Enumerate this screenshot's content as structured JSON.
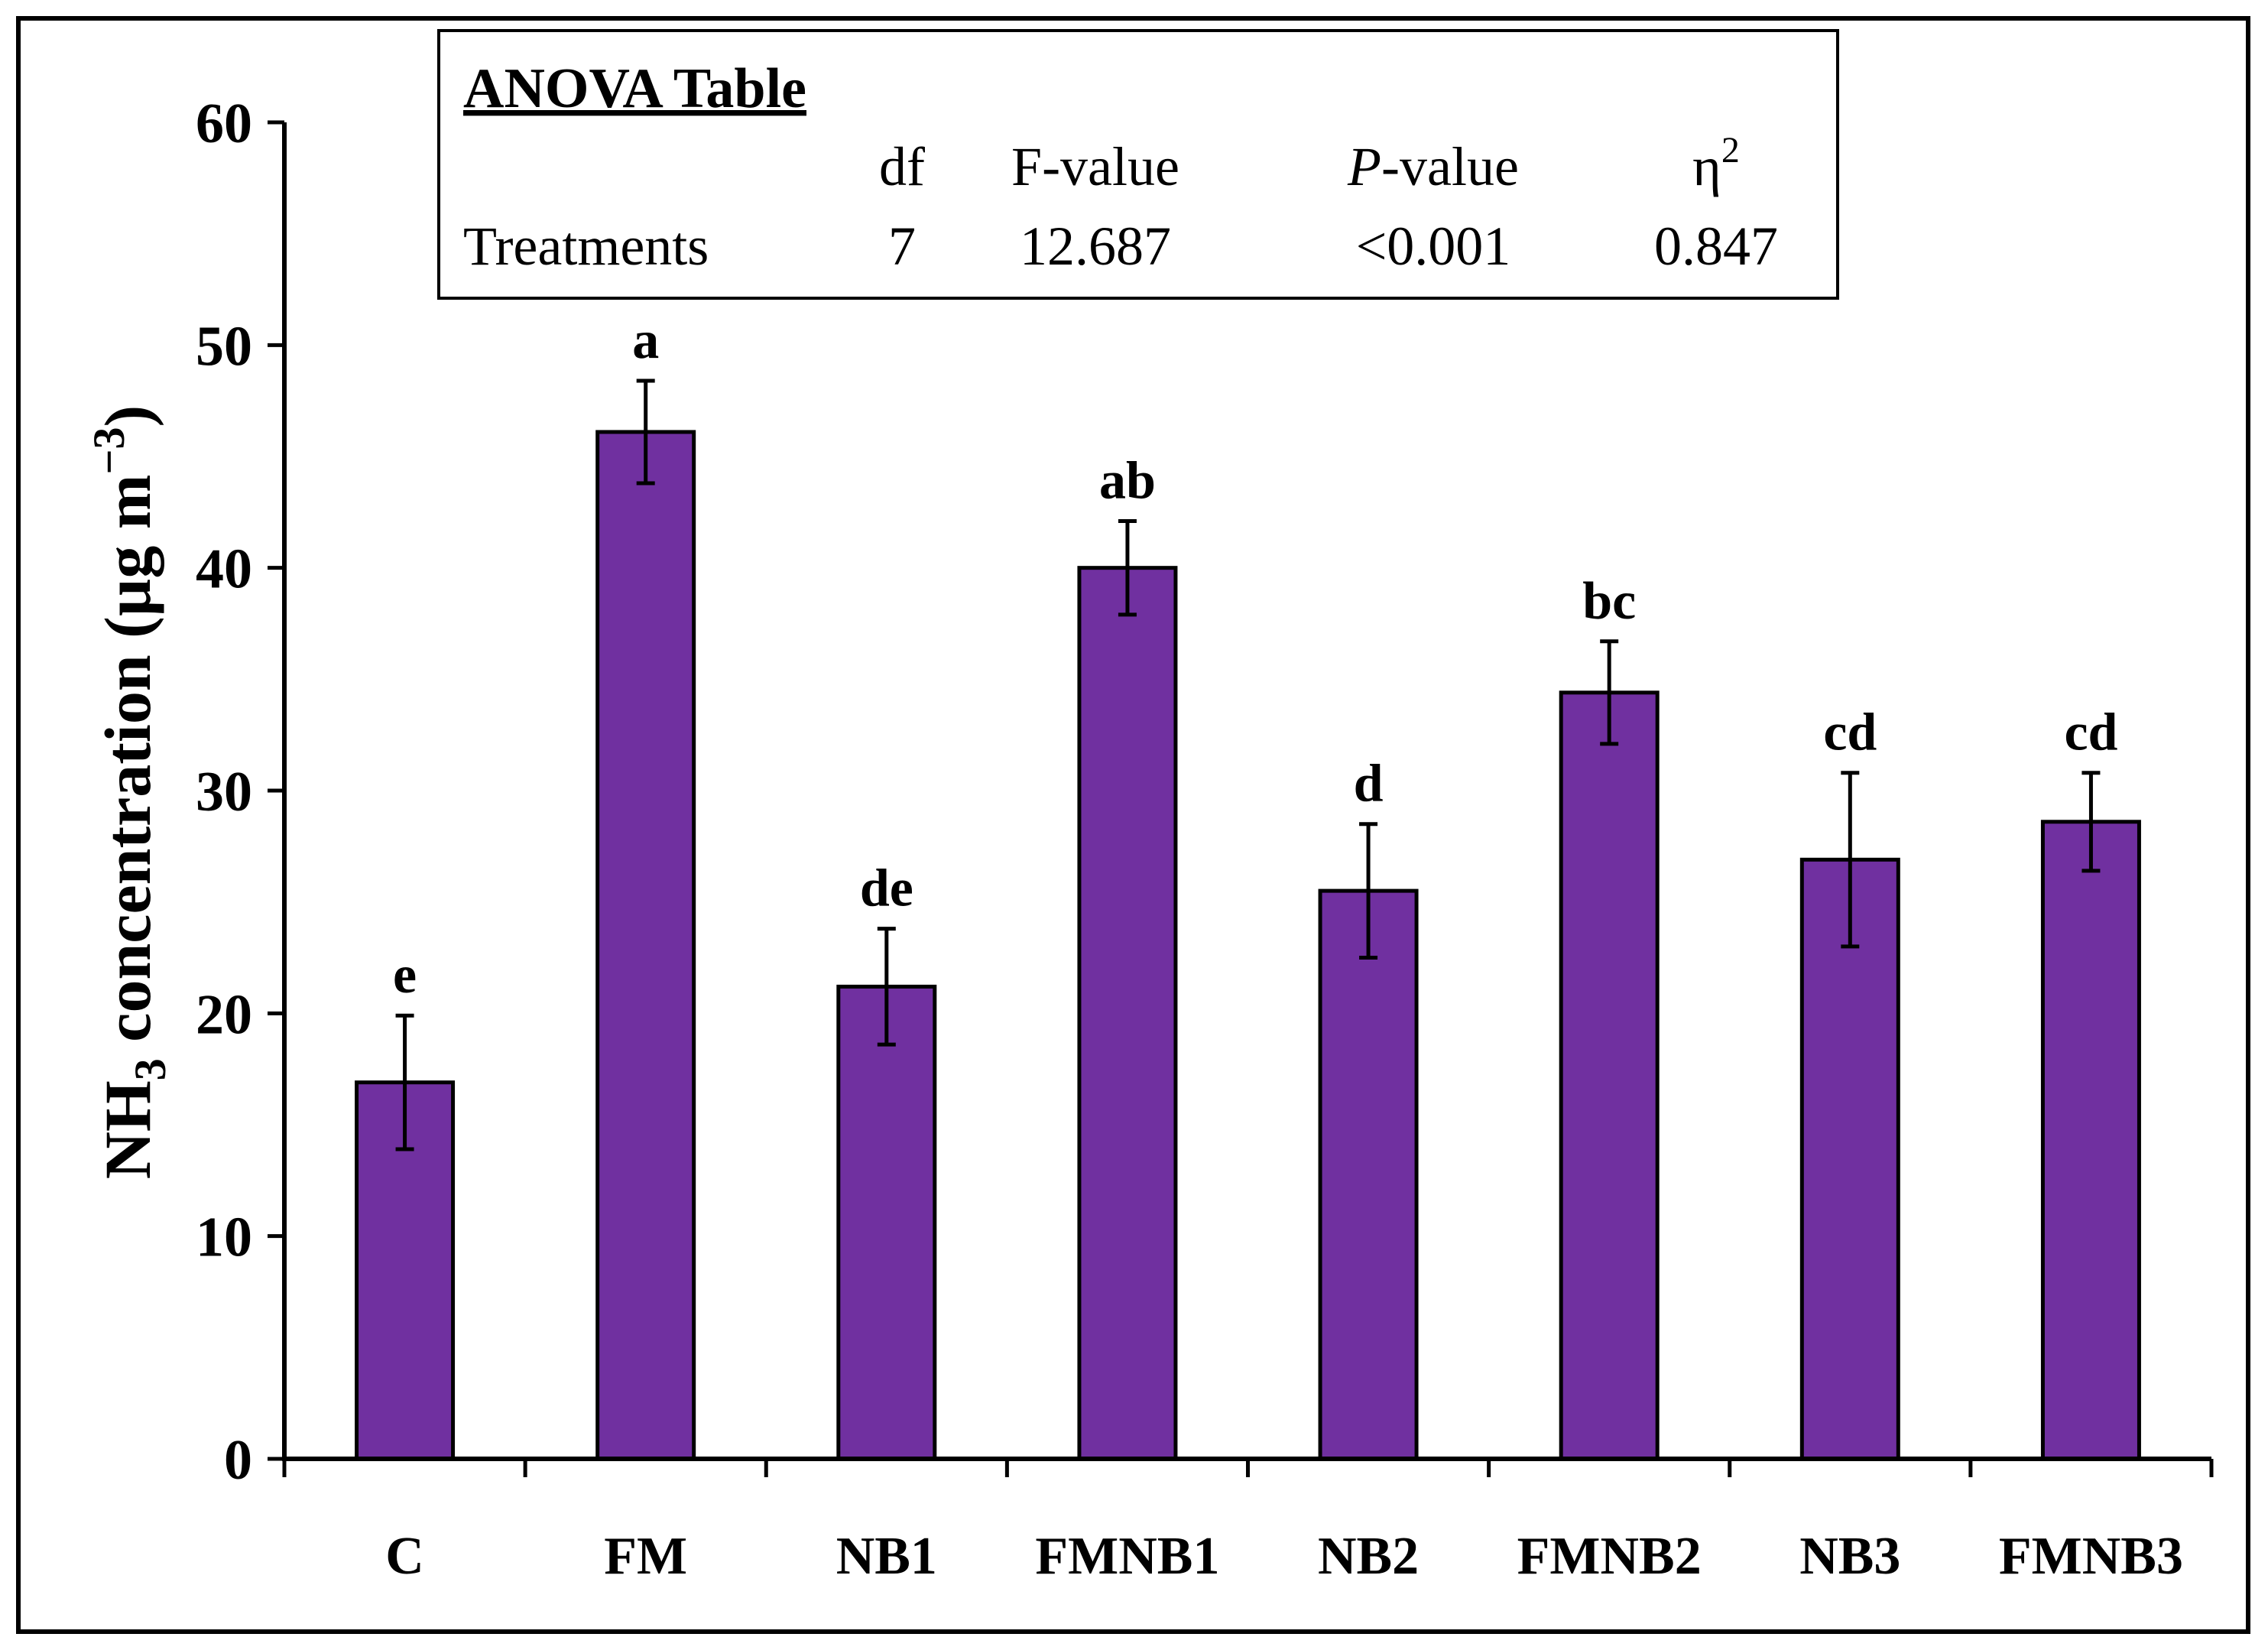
{
  "chart_data": {
    "type": "bar",
    "title": "",
    "xlabel": "",
    "ylabel": {
      "main": "NH",
      "sub": "3",
      "rest": " concentration (µg m",
      "sup": "−3",
      "close": ")"
    },
    "ylim": [
      0,
      60
    ],
    "yticks": [
      "0",
      "10",
      "20",
      "30",
      "40",
      "50",
      "60"
    ],
    "categories": [
      "C",
      "FM",
      "NB1",
      "FMNB1",
      "NB2",
      "FMNB2",
      "NB3",
      "FMNB3"
    ],
    "values": [
      16.9,
      46.1,
      21.2,
      40.0,
      25.5,
      34.4,
      26.9,
      28.6
    ],
    "errors": [
      3.0,
      2.3,
      2.6,
      2.1,
      3.0,
      2.3,
      3.9,
      2.2
    ],
    "letters": [
      "e",
      "a",
      "de",
      "ab",
      "d",
      "bc",
      "cd",
      "cd"
    ],
    "bar_color": "#7030a0",
    "grid": false,
    "legend": "none"
  },
  "anova": {
    "title": "ANOVA Table",
    "headers": {
      "df": "df",
      "f": "F-value",
      "p_italic": "P",
      "p_rest": "-value",
      "eta": "η",
      "eta_sup": "2"
    },
    "row": {
      "label": "Treatments",
      "df": "7",
      "f": "12.687",
      "p": "<0.001",
      "eta": "0.847"
    }
  }
}
